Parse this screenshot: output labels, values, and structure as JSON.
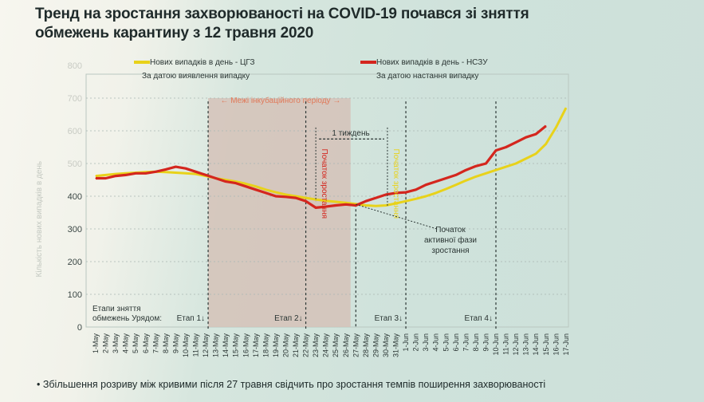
{
  "title_line1": "Тренд на зростання захворюваності на COVID-19 почався зі зняття",
  "title_line2": "обмежень карантину з 12 травня 2020",
  "footnote": "• Збільшення розриву між кривими після 27 травня свідчить про зростання темпів поширення захворюваності",
  "chart_data": {
    "type": "line",
    "ylabel": "Кількість нових випадків в день",
    "ylim": [
      0,
      800
    ],
    "yticks": [
      0,
      100,
      200,
      300,
      400,
      500,
      600,
      700,
      800
    ],
    "grid": true,
    "categories": [
      "1-May",
      "2-May",
      "3-May",
      "4-May",
      "5-May",
      "6-May",
      "7-May",
      "8-May",
      "9-May",
      "10-May",
      "11-May",
      "12-May",
      "13-May",
      "14-May",
      "15-May",
      "16-May",
      "17-May",
      "18-May",
      "19-May",
      "20-May",
      "21-May",
      "22-May",
      "23-May",
      "24-May",
      "25-May",
      "26-May",
      "27-May",
      "28-May",
      "29-May",
      "30-May",
      "31-May",
      "1-Jun",
      "2-Jun",
      "3-Jun",
      "4-Jun",
      "5-Jun",
      "6-Jun",
      "7-Jun",
      "8-Jun",
      "9-Jun",
      "10-Jun",
      "11-Jun",
      "12-Jun",
      "13-Jun",
      "14-Jun",
      "15-Jun",
      "16-Jun",
      "17-Jun"
    ],
    "series": [
      {
        "name": "Нових випадків в день - ЦГЗ",
        "sub": "За датою виявлення випадку",
        "color": "#e8d21a",
        "values": [
          462,
          465,
          468,
          470,
          472,
          474,
          475,
          474,
          472,
          470,
          468,
          462,
          455,
          450,
          445,
          438,
          430,
          420,
          412,
          405,
          400,
          395,
          390,
          386,
          383,
          380,
          376,
          372,
          370,
          372,
          378,
          385,
          392,
          400,
          410,
          422,
          435,
          448,
          460,
          470,
          480,
          490,
          500,
          515,
          530,
          560,
          610,
          670
        ]
      },
      {
        "name": "Нових випадків в день - НСЗУ",
        "sub": "За датою настання випадку",
        "color": "#d4261e",
        "values": [
          455,
          455,
          462,
          465,
          470,
          470,
          475,
          482,
          490,
          485,
          475,
          465,
          455,
          445,
          440,
          430,
          420,
          410,
          400,
          398,
          395,
          385,
          365,
          368,
          372,
          375,
          372,
          385,
          395,
          405,
          410,
          412,
          420,
          435,
          445,
          455,
          465,
          480,
          492,
          500,
          540,
          550,
          565,
          580,
          590,
          615,
          null,
          null
        ]
      }
    ],
    "legend": "top",
    "shaded_region": {
      "from": "12-May",
      "to": "26-May",
      "label": "← Межі інкубаційного періоду →"
    },
    "stages_label": "Етапи зняття обмежень Урядом:",
    "stages": [
      {
        "label": "Етап 1",
        "date": "12-May"
      },
      {
        "label": "Етап 2",
        "date": "22-May"
      },
      {
        "label": "Етап 3",
        "date": "1-Jun"
      },
      {
        "label": "Етап 4",
        "date": "10-Jun"
      }
    ],
    "annotations": [
      {
        "text": "Початок зростання",
        "date": "23-May",
        "color": "#d4261e"
      },
      {
        "text": "Початок зростання",
        "date": "30-May",
        "color": "#e8d21a"
      },
      {
        "text": "1 тиждень",
        "from": "23-May",
        "to": "30-May"
      },
      {
        "text": "Початок активної фази зростання",
        "date": "27-May",
        "value": 375
      }
    ]
  }
}
